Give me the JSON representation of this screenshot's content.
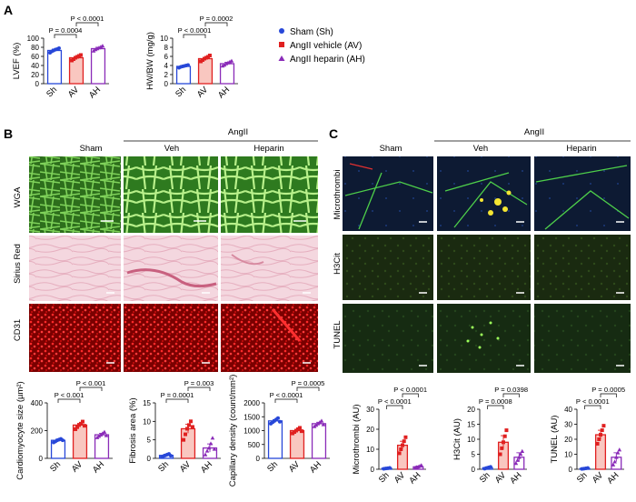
{
  "panels": {
    "A": "A",
    "B": "B",
    "C": "C"
  },
  "groups": [
    "Sham (Sh)",
    "AngII vehicle (AV)",
    "AngII heparin (AH)"
  ],
  "colors": {
    "sham": "#2747d8",
    "vehicle": "#e02020",
    "heparin": "#8a2bb8"
  },
  "groupAbbrev": [
    "Sh",
    "AV",
    "AH"
  ],
  "headersB": {
    "sham": "Sham",
    "angii": "AngII",
    "veh": "Veh",
    "heparin": "Heparin"
  },
  "headersC": {
    "sham": "Sham",
    "angii": "AngII",
    "veh": "Veh",
    "heparin": "Heparin"
  },
  "rowsB": [
    "WGA",
    "Sirius Red",
    "CD31"
  ],
  "rowsC": [
    "Microthrombi",
    "H3Cit",
    "TUNEL"
  ],
  "chart_data": [
    {
      "id": "lvef",
      "type": "bar",
      "ylabel": "LVEF (%)",
      "ylim": [
        0,
        100
      ],
      "ticks": [
        0,
        20,
        40,
        60,
        80,
        100
      ],
      "categories": [
        "Sh",
        "AV",
        "AH"
      ],
      "values": [
        73,
        57,
        77
      ],
      "errors": [
        3,
        3,
        3
      ],
      "points": [
        [
          68,
          71,
          73,
          75,
          76,
          78
        ],
        [
          51,
          54,
          57,
          59,
          61,
          63
        ],
        [
          72,
          75,
          77,
          79,
          81,
          83
        ]
      ],
      "comparisons": [
        {
          "a": 0,
          "b": 1,
          "label": "P = 0.0004"
        },
        {
          "a": 1,
          "b": 2,
          "label": "P < 0.0001"
        }
      ]
    },
    {
      "id": "hwbw",
      "type": "bar",
      "ylabel": "HW/BW (mg/g)",
      "ylim": [
        0,
        10
      ],
      "ticks": [
        0,
        2,
        4,
        6,
        8,
        10
      ],
      "categories": [
        "Sh",
        "AV",
        "AH"
      ],
      "values": [
        3.8,
        5.5,
        4.4
      ],
      "errors": [
        0.2,
        0.3,
        0.3
      ],
      "points": [
        [
          3.5,
          3.7,
          3.8,
          3.9,
          4.0,
          4.1
        ],
        [
          4.9,
          5.2,
          5.5,
          5.7,
          5.9,
          6.2
        ],
        [
          3.9,
          4.1,
          4.4,
          4.6,
          4.8,
          5.0
        ]
      ],
      "comparisons": [
        {
          "a": 0,
          "b": 1,
          "label": "P < 0.0001"
        },
        {
          "a": 1,
          "b": 2,
          "label": "P = 0.0002"
        }
      ]
    },
    {
      "id": "cmsize",
      "type": "bar",
      "ylabel": "Cardiomyocyte size (µm²)",
      "ylim": [
        0,
        400
      ],
      "ticks": [
        0,
        200,
        400
      ],
      "categories": [
        "Sh",
        "AV",
        "AH"
      ],
      "values": [
        130,
        240,
        170
      ],
      "errors": [
        8,
        12,
        10
      ],
      "points": [
        [
          115,
          122,
          130,
          135,
          140,
          130
        ],
        [
          210,
          225,
          240,
          250,
          265,
          235
        ],
        [
          150,
          160,
          170,
          180,
          190,
          165
        ]
      ],
      "comparisons": [
        {
          "a": 0,
          "b": 1,
          "label": "P < 0.001"
        },
        {
          "a": 1,
          "b": 2,
          "label": "P < 0.001"
        }
      ]
    },
    {
      "id": "fibrosis",
      "type": "bar",
      "ylabel": "Fibrosis area (%)",
      "ylim": [
        0,
        15
      ],
      "ticks": [
        0,
        5,
        10,
        15
      ],
      "categories": [
        "Sh",
        "AV",
        "AH"
      ],
      "values": [
        0.8,
        8,
        2.8
      ],
      "errors": [
        0.3,
        1.2,
        1.1
      ],
      "points": [
        [
          0.4,
          0.6,
          0.8,
          1.0,
          1.2,
          0.7
        ],
        [
          5,
          6.5,
          8,
          9,
          10,
          8.5
        ],
        [
          1,
          2,
          2.8,
          4,
          5.5,
          2.5
        ]
      ],
      "comparisons": [
        {
          "a": 0,
          "b": 1,
          "label": "P = 0.0001"
        },
        {
          "a": 1,
          "b": 2,
          "label": "P = 0.003"
        }
      ]
    },
    {
      "id": "capillary",
      "type": "bar",
      "ylabel": "Capillary density (count/mm²)",
      "ylim": [
        0,
        2000
      ],
      "ticks": [
        0,
        500,
        1000,
        1500,
        2000
      ],
      "categories": [
        "Sh",
        "AV",
        "AH"
      ],
      "values": [
        1350,
        1000,
        1250
      ],
      "errors": [
        50,
        50,
        50
      ],
      "points": [
        [
          1250,
          1300,
          1350,
          1400,
          1450,
          1320
        ],
        [
          900,
          950,
          1000,
          1050,
          1100,
          980
        ],
        [
          1150,
          1200,
          1250,
          1300,
          1350,
          1220
        ]
      ],
      "comparisons": [
        {
          "a": 0,
          "b": 1,
          "label": "P < 0.0001"
        },
        {
          "a": 1,
          "b": 2,
          "label": "P = 0.0005"
        }
      ]
    },
    {
      "id": "microthrombi",
      "type": "bar",
      "ylabel": "Microthrombi (AU)",
      "ylim": [
        0,
        30
      ],
      "ticks": [
        0,
        10,
        20,
        30
      ],
      "categories": [
        "Sh",
        "AV",
        "AH"
      ],
      "values": [
        0.5,
        12,
        1.2
      ],
      "errors": [
        0.3,
        2,
        0.4
      ],
      "points": [
        [
          0.2,
          0.4,
          0.5,
          0.7
        ],
        [
          8,
          10,
          12,
          14,
          16
        ],
        [
          0.6,
          1.0,
          1.2,
          1.6,
          2.0
        ]
      ],
      "comparisons": [
        {
          "a": 0,
          "b": 1,
          "label": "P < 0.0001"
        },
        {
          "a": 1,
          "b": 2,
          "label": "P < 0.0001"
        }
      ]
    },
    {
      "id": "h3cit",
      "type": "bar",
      "ylabel": "H3Cit (AU)",
      "ylim": [
        0,
        20
      ],
      "ticks": [
        0,
        5,
        10,
        15,
        20
      ],
      "categories": [
        "Sh",
        "AV",
        "AH"
      ],
      "values": [
        0.5,
        9,
        4
      ],
      "errors": [
        0.3,
        2.2,
        1.5
      ],
      "points": [
        [
          0.2,
          0.4,
          0.6,
          0.8
        ],
        [
          5,
          7,
          9,
          11,
          13
        ],
        [
          2,
          3,
          4,
          5,
          6
        ]
      ],
      "comparisons": [
        {
          "a": 0,
          "b": 1,
          "label": "P = 0.0008"
        },
        {
          "a": 1,
          "b": 2,
          "label": "P = 0.0398"
        }
      ]
    },
    {
      "id": "tunel",
      "type": "bar",
      "ylabel": "TUNEL (AU)",
      "ylim": [
        0,
        40
      ],
      "ticks": [
        0,
        10,
        20,
        30,
        40
      ],
      "categories": [
        "Sh",
        "AV",
        "AH"
      ],
      "values": [
        0.5,
        23,
        8
      ],
      "errors": [
        0.3,
        3,
        3
      ],
      "points": [
        [
          0.2,
          0.4,
          0.6,
          0.8
        ],
        [
          17,
          20,
          23,
          26,
          29
        ],
        [
          3,
          5,
          8,
          11,
          13
        ]
      ],
      "comparisons": [
        {
          "a": 0,
          "b": 1,
          "label": "P < 0.0001"
        },
        {
          "a": 1,
          "b": 2,
          "label": "P = 0.0005"
        }
      ]
    }
  ]
}
